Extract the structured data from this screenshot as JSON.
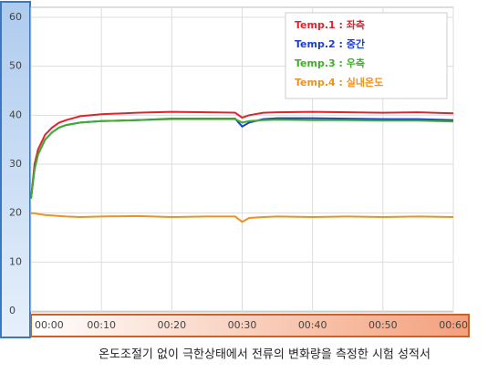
{
  "chart_data": {
    "type": "line",
    "caption": "온도조절기 없이 극한상태에서 전류의 변화량을 측정한 시험 성적서",
    "x": [
      0,
      0.5,
      1,
      2,
      3,
      4,
      5,
      7,
      10,
      15,
      20,
      25,
      29,
      30,
      31,
      33,
      35,
      40,
      45,
      50,
      55,
      60
    ],
    "series": [
      {
        "name": "Temp.1 : 좌측",
        "color": "#e8202a",
        "values": [
          23,
          30,
          33,
          36,
          37.5,
          38.5,
          39,
          39.8,
          40.2,
          40.5,
          40.7,
          40.6,
          40.5,
          39.5,
          40,
          40.5,
          40.6,
          40.7,
          40.6,
          40.5,
          40.6,
          40.4
        ]
      },
      {
        "name": "Temp.2 : 중간",
        "color": "#1a3fd0",
        "values": [
          23,
          29,
          32,
          35,
          36.5,
          37.5,
          38,
          38.5,
          38.8,
          39,
          39.3,
          39.3,
          39.3,
          37.7,
          38.5,
          39.2,
          39.4,
          39.4,
          39.3,
          39.2,
          39.2,
          39
        ]
      },
      {
        "name": "Temp.3 : 우측",
        "color": "#3fae2a",
        "values": [
          23,
          29,
          32,
          35,
          36.5,
          37.5,
          38,
          38.5,
          38.8,
          39,
          39.2,
          39.2,
          39.2,
          38.5,
          38.8,
          39,
          39.1,
          39,
          39,
          38.9,
          38.9,
          38.7
        ]
      },
      {
        "name": "Temp.4 : 실내온도",
        "color": "#f0901e",
        "values": [
          20,
          20,
          19.8,
          19.6,
          19.5,
          19.4,
          19.3,
          19.2,
          19.3,
          19.4,
          19.2,
          19.3,
          19.3,
          18.2,
          19,
          19.2,
          19.3,
          19.2,
          19.3,
          19.2,
          19.3,
          19.2
        ]
      }
    ],
    "xlim": [
      0,
      60
    ],
    "xticks": [
      {
        "value": 0,
        "label": "00:00"
      },
      {
        "value": 10,
        "label": "00:10"
      },
      {
        "value": 20,
        "label": "00:20"
      },
      {
        "value": 30,
        "label": "00:30"
      },
      {
        "value": 40,
        "label": "00:40"
      },
      {
        "value": 50,
        "label": "00:50"
      },
      {
        "value": 60,
        "label": "00:60"
      }
    ],
    "ylim": [
      0,
      60
    ],
    "yticks": [
      0,
      10,
      20,
      30,
      40,
      50,
      60
    ],
    "grid": true,
    "legend": "upper right"
  }
}
